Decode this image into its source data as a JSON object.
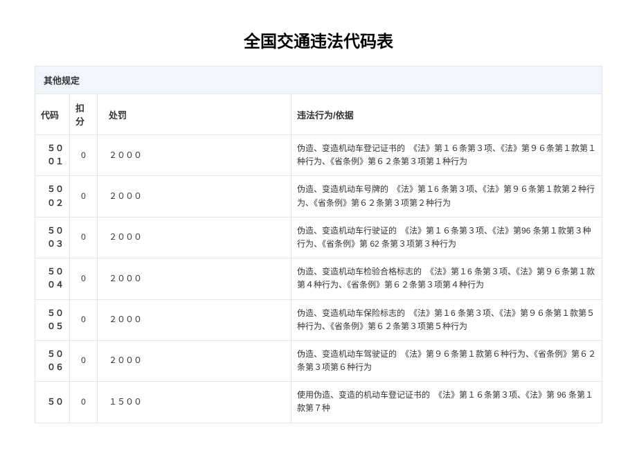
{
  "title": "全国交通违法代码表",
  "section_header": "其他规定",
  "columns": {
    "code": "代码",
    "points": "扣分",
    "penalty": "处罚",
    "description": "违法行为/依据"
  },
  "rows": [
    {
      "code": "５００１",
      "points": "0",
      "penalty": "２０００",
      "description": "伪造、变造机动车登记证书的　《法》第１６条第３项、《法》第９６条第１款第１种行为、《省条例》第６２条第３项第１种行为"
    },
    {
      "code": "５００２",
      "points": "0",
      "penalty": "２０００",
      "description": "伪造、变造机动车号牌的　《法》第１6 条第３项、《法》第９６条第１款第２种行为、《省条例》第６２条第３项第２种行为"
    },
    {
      "code": "５００３",
      "points": "0",
      "penalty": "２０００",
      "description": "伪造、变造机动车行驶证的　《法》第１６条第３项、《法》第96 条第１款第３种行为、《省条例》第 62 条第３项第３种行为"
    },
    {
      "code": "５００４",
      "points": "0",
      "penalty": "２０００",
      "description": "伪造、变造机动车检验合格标志的　《法》第１6 条第３项、《法》第９６条第１款第４种行为、《省条例》第６２条第３项第４种行为"
    },
    {
      "code": "５００５",
      "points": "0",
      "penalty": "２０００",
      "description": "伪造、变造机动车保险标志的　《法》第１6 条第３项、《法》第９６条第１款第５种行为、《省条例》第６２条第３项第５种行为"
    },
    {
      "code": "５００６",
      "points": "0",
      "penalty": "２０００",
      "description": "伪造、变造机动车驾驶证的　《法》第９６条第１款第６种行为、《省条例》第６２条第３项第６种行为"
    },
    {
      "code": "５０",
      "points": "0",
      "penalty": "１５００",
      "description": "使用伪造、变造的机动车登记证书的　《法》第１６条第３项、《法》第 96 条第１款第７种"
    }
  ],
  "styles": {
    "title_fontsize": 24,
    "header_bg": "#f0f6fb",
    "border_color": "#e5e5e5",
    "text_color": "#333333",
    "body_fontsize": 12,
    "header_fontsize": 13,
    "col_widths": {
      "code": 50,
      "points": 40,
      "penalty": 280
    }
  }
}
